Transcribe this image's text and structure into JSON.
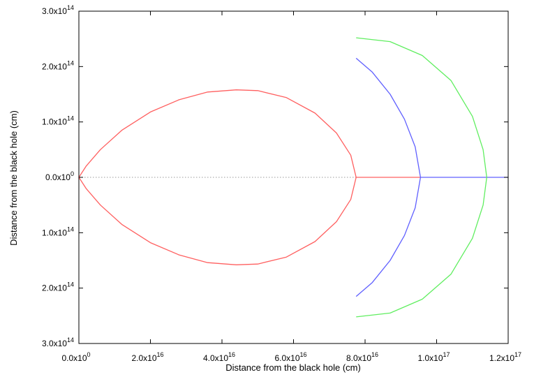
{
  "chart_data": {
    "type": "line",
    "title": "",
    "xlabel": "Distance from the black hole (cm)",
    "ylabel": "Distance from the black hole (cm)",
    "xlim": [
      0,
      1.2e+17
    ],
    "ylim": [
      -300000000000000.0,
      300000000000000.0
    ],
    "grid": false,
    "legend": "none",
    "x_ticks": [
      {
        "value": 0,
        "base": "0.0x10",
        "exp": "0"
      },
      {
        "value": 2e+16,
        "base": "2.0x10",
        "exp": "16"
      },
      {
        "value": 4e+16,
        "base": "4.0x10",
        "exp": "16"
      },
      {
        "value": 6e+16,
        "base": "6.0x10",
        "exp": "16"
      },
      {
        "value": 8e+16,
        "base": "8.0x10",
        "exp": "16"
      },
      {
        "value": 1e+17,
        "base": "1.0x10",
        "exp": "17"
      },
      {
        "value": 1.2e+17,
        "base": "1.2x10",
        "exp": "17"
      }
    ],
    "y_ticks": [
      {
        "value": 300000000000000.0,
        "base": "3.0x10",
        "exp": "14"
      },
      {
        "value": 200000000000000.0,
        "base": "2.0x10",
        "exp": "14"
      },
      {
        "value": 100000000000000.0,
        "base": "1.0x10",
        "exp": "14"
      },
      {
        "value": 0,
        "base": "0.0x10",
        "exp": "0"
      },
      {
        "value": -100000000000000.0,
        "base": "1.0x10",
        "exp": "14"
      },
      {
        "value": -200000000000000.0,
        "base": "2.0x10",
        "exp": "14"
      },
      {
        "value": -300000000000000.0,
        "base": "3.0x10",
        "exp": "14"
      }
    ],
    "zero_line": {
      "y": 0,
      "style": "dotted",
      "color": "#999999"
    },
    "series": [
      {
        "color": "#ff6060",
        "points": [
          [
            7.75e+16,
            0
          ],
          [
            7.6e+16,
            40000000000000.0
          ],
          [
            7.2e+16,
            80000000000000.0
          ],
          [
            6.6e+16,
            116000000000000.0
          ],
          [
            5.8e+16,
            144000000000000.0
          ],
          [
            5e+16,
            156500000000000.0
          ],
          [
            4.4e+16,
            158000000000000.0
          ],
          [
            3.6e+16,
            154000000000000.0
          ],
          [
            2.8e+16,
            140000000000000.0
          ],
          [
            2e+16,
            118000000000000.0
          ],
          [
            1.2e+16,
            85000000000000.0
          ],
          [
            6000000000000000.0,
            50000000000000.0
          ],
          [
            2000000000000000.0,
            20000000000000.0
          ],
          [
            0,
            0
          ],
          [
            2000000000000000.0,
            -20000000000000.0
          ],
          [
            6000000000000000.0,
            -50000000000000.0
          ],
          [
            1.2e+16,
            -85000000000000.0
          ],
          [
            2e+16,
            -118000000000000.0
          ],
          [
            2.8e+16,
            -140000000000000.0
          ],
          [
            3.6e+16,
            -154000000000000.0
          ],
          [
            4.4e+16,
            -158000000000000.0
          ],
          [
            5e+16,
            -156500000000000.0
          ],
          [
            5.8e+16,
            -144000000000000.0
          ],
          [
            6.6e+16,
            -116000000000000.0
          ],
          [
            7.2e+16,
            -80000000000000.0
          ],
          [
            7.6e+16,
            -40000000000000.0
          ],
          [
            7.75e+16,
            0
          ]
        ]
      },
      {
        "color": "#ff6060",
        "points": [
          [
            7.75e+16,
            0
          ],
          [
            9.55e+16,
            0
          ]
        ]
      },
      {
        "color": "#6060ff",
        "points": [
          [
            7.75e+16,
            215000000000000.0
          ],
          [
            8.2e+16,
            190000000000000.0
          ],
          [
            8.7e+16,
            150000000000000.0
          ],
          [
            9.1e+16,
            105000000000000.0
          ],
          [
            9.4e+16,
            55000000000000.0
          ],
          [
            9.55e+16,
            0
          ],
          [
            9.4e+16,
            -55000000000000.0
          ],
          [
            9.1e+16,
            -105000000000000.0
          ],
          [
            8.7e+16,
            -150000000000000.0
          ],
          [
            8.2e+16,
            -190000000000000.0
          ],
          [
            7.75e+16,
            -215000000000000.0
          ]
        ]
      },
      {
        "color": "#6060ff",
        "points": [
          [
            9.55e+16,
            0
          ],
          [
            1.2e+17,
            0
          ]
        ]
      },
      {
        "color": "#60ee60",
        "points": [
          [
            7.75e+16,
            252000000000000.0
          ],
          [
            8.7e+16,
            245000000000000.0
          ],
          [
            9.6e+16,
            220000000000000.0
          ],
          [
            1.04e+17,
            175000000000000.0
          ],
          [
            1.1e+17,
            110000000000000.0
          ],
          [
            1.13e+17,
            50000000000000.0
          ],
          [
            1.14e+17,
            0
          ],
          [
            1.13e+17,
            -50000000000000.0
          ],
          [
            1.1e+17,
            -110000000000000.0
          ],
          [
            1.04e+17,
            -175000000000000.0
          ],
          [
            9.6e+16,
            -220000000000000.0
          ],
          [
            8.7e+16,
            -245000000000000.0
          ],
          [
            7.75e+16,
            -252000000000000.0
          ]
        ]
      }
    ]
  }
}
